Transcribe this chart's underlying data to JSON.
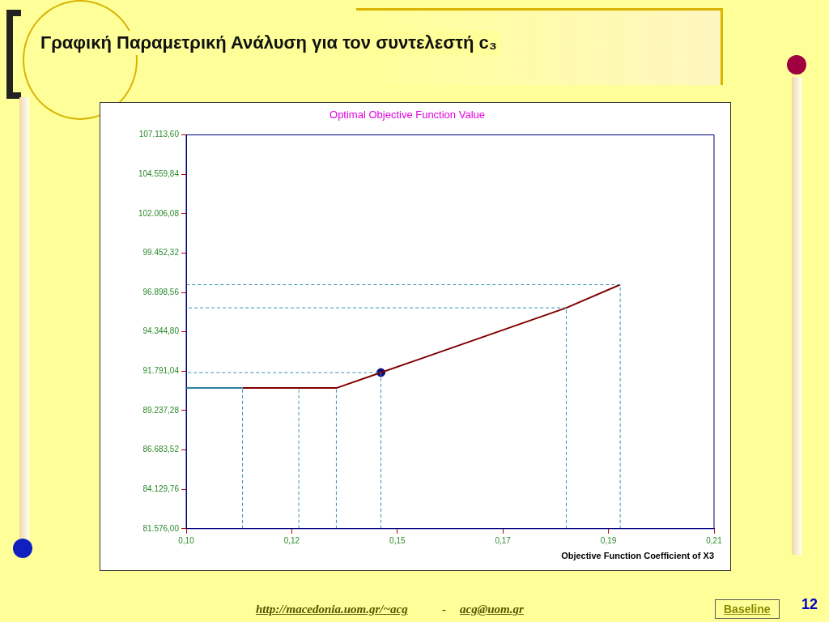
{
  "chart_data": {
    "type": "line",
    "title": "Γραφική Παραμετρική Ανάλυση για τον συντελεστή c₃",
    "subtitle": "Optimal Objective Function Value",
    "xlabel": "Objective Function Coefficient of X3",
    "xlim": [
      0.1,
      0.2125
    ],
    "xticks": [
      {
        "value": 0.1,
        "label": "0,10"
      },
      {
        "value": 0.1225,
        "label": "0,12"
      },
      {
        "value": 0.145,
        "label": "0,15"
      },
      {
        "value": 0.1675,
        "label": "0,17"
      },
      {
        "value": 0.19,
        "label": "0,19"
      },
      {
        "value": 0.2125,
        "label": "0,21"
      }
    ],
    "ylim": [
      81576,
      107113.6
    ],
    "yticks": [
      {
        "value": 81576,
        "label": "81.576,00"
      },
      {
        "value": 84129.76,
        "label": "84.129,76"
      },
      {
        "value": 86683.52,
        "label": "86.683,52"
      },
      {
        "value": 89237.28,
        "label": "89.237,28"
      },
      {
        "value": 91791.04,
        "label": "91.791,04"
      },
      {
        "value": 94344.8,
        "label": "94.344,80"
      },
      {
        "value": 96898.56,
        "label": "96.898,56"
      },
      {
        "value": 99452.32,
        "label": "99.452,32"
      },
      {
        "value": 102006.08,
        "label": "102.006,08"
      },
      {
        "value": 104559.84,
        "label": "104.559,84"
      },
      {
        "value": 107113.6,
        "label": "107.113,60"
      }
    ],
    "grid": false,
    "legend": false,
    "marker": "none",
    "series": [
      {
        "color": "#2a7fa0",
        "x": [
          0.1,
          0.112
        ],
        "values": [
          90700,
          90700
        ]
      },
      {
        "color": "#3a8fb0",
        "line_style": "dashed",
        "x": [
          0.112,
          0.112
        ],
        "values": [
          81576,
          90700
        ]
      },
      {
        "color": "#3a8fb0",
        "line_style": "dashed",
        "x": [
          0.124,
          0.124
        ],
        "values": [
          81576,
          90700
        ]
      },
      {
        "color": "#3a8fb0",
        "line_style": "dashed",
        "x": [
          0.132,
          0.132
        ],
        "values": [
          81576,
          90700
        ]
      },
      {
        "color": "#3a8fb0",
        "line_style": "dashed",
        "x": [
          0.1415,
          0.1415,
          0.1
        ],
        "values": [
          81576,
          91700,
          91700
        ]
      },
      {
        "color": "#3a8fb0",
        "line_style": "dashed",
        "x": [
          0.181,
          0.181,
          0.1
        ],
        "values": [
          81576,
          95900,
          95900
        ]
      },
      {
        "color": "#3a8fb0",
        "line_style": "dashed",
        "x": [
          0.1925,
          0.1925,
          0.1
        ],
        "values": [
          81576,
          97400,
          97400
        ]
      },
      {
        "color": "#800000",
        "x": [
          0.112,
          0.132,
          0.1415,
          0.181,
          0.1925
        ],
        "values": [
          90700,
          90700,
          91700,
          95900,
          97400
        ]
      },
      {
        "type": "scatter",
        "color": "#0a0a80",
        "marker": "circle",
        "x": [
          0.1415
        ],
        "values": [
          91700
        ]
      }
    ],
    "annotations": [
      "http://macedonia.uom.gr/~acg",
      "-",
      "acg@uom.gr",
      "Baseline",
      "12"
    ]
  }
}
